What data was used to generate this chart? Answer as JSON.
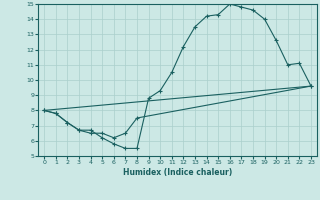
{
  "xlabel": "Humidex (Indice chaleur)",
  "ylabel": "",
  "bg_color": "#cce8e5",
  "grid_color": "#aacfcc",
  "line_color": "#1a6060",
  "xlim": [
    -0.5,
    23.5
  ],
  "ylim": [
    5,
    15
  ],
  "xticks": [
    0,
    1,
    2,
    3,
    4,
    5,
    6,
    7,
    8,
    9,
    10,
    11,
    12,
    13,
    14,
    15,
    16,
    17,
    18,
    19,
    20,
    21,
    22,
    23
  ],
  "yticks": [
    5,
    6,
    7,
    8,
    9,
    10,
    11,
    12,
    13,
    14,
    15
  ],
  "line1_x": [
    0,
    1,
    2,
    3,
    4,
    5,
    6,
    7,
    8,
    9,
    10,
    11,
    12,
    13,
    14,
    15,
    16,
    17,
    18,
    19,
    20,
    21,
    22,
    23
  ],
  "line1_y": [
    8.0,
    7.8,
    7.2,
    6.7,
    6.7,
    6.2,
    5.8,
    5.5,
    5.5,
    8.8,
    9.3,
    10.5,
    12.2,
    13.5,
    14.2,
    14.3,
    15.0,
    14.8,
    14.6,
    14.0,
    12.6,
    11.0,
    11.1,
    9.6
  ],
  "line2_x": [
    0,
    1,
    2,
    3,
    4,
    5,
    6,
    7,
    8,
    23
  ],
  "line2_y": [
    8.0,
    7.8,
    7.2,
    6.7,
    6.5,
    6.5,
    6.2,
    6.5,
    7.5,
    9.6
  ],
  "line3_x": [
    0,
    23
  ],
  "line3_y": [
    8.0,
    9.6
  ],
  "marker": "+"
}
